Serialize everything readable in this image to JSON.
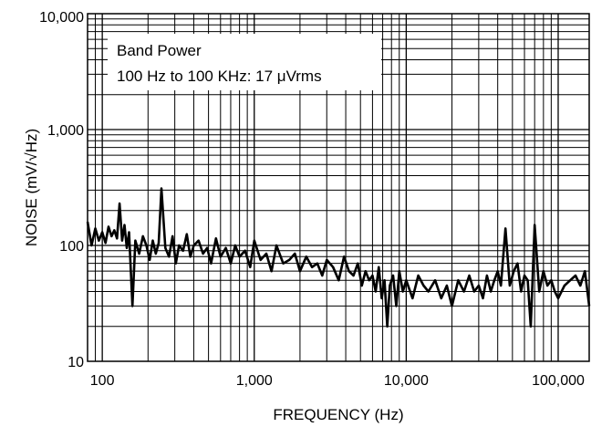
{
  "chart_data": {
    "type": "line",
    "title": "",
    "xlabel": "FREQUENCY (Hz)",
    "ylabel": "NOISE (mV/√Hz)",
    "x_scale": "log",
    "y_scale": "log",
    "xlim": [
      80,
      160000
    ],
    "ylim": [
      10,
      10000
    ],
    "grid": true,
    "x_ticks": [
      {
        "value": 100,
        "label": "100"
      },
      {
        "value": 1000,
        "label": "1,000"
      },
      {
        "value": 10000,
        "label": "10,000"
      },
      {
        "value": 100000,
        "label": "100,000"
      }
    ],
    "y_ticks": [
      {
        "value": 10,
        "label": "10"
      },
      {
        "value": 100,
        "label": "100"
      },
      {
        "value": 1000,
        "label": "1,000"
      },
      {
        "value": 10000,
        "label": "10,000"
      }
    ],
    "annotation": {
      "line1": "Band Power",
      "line2": "100 Hz to 100 KHz: 17 μVrms"
    },
    "series": [
      {
        "color": "#000000",
        "x": [
          80,
          85,
          90,
          95,
          100,
          105,
          110,
          115,
          120,
          125,
          130,
          135,
          140,
          145,
          150,
          158,
          165,
          175,
          185,
          195,
          205,
          215,
          225,
          235,
          245,
          260,
          275,
          290,
          305,
          320,
          340,
          360,
          380,
          400,
          430,
          460,
          490,
          520,
          560,
          600,
          650,
          700,
          750,
          800,
          870,
          940,
          1000,
          1100,
          1200,
          1300,
          1400,
          1550,
          1700,
          1850,
          2000,
          2200,
          2400,
          2600,
          2800,
          3000,
          3300,
          3600,
          3900,
          4200,
          4500,
          4800,
          5100,
          5400,
          5700,
          6000,
          6300,
          6600,
          6900,
          7200,
          7500,
          7800,
          8200,
          8600,
          9000,
          9500,
          10000,
          11000,
          12000,
          13000,
          14000,
          15500,
          17000,
          18500,
          20000,
          22000,
          24000,
          26000,
          28000,
          30000,
          32000,
          34000,
          36000,
          38000,
          40000,
          42000,
          45000,
          48000,
          51000,
          54000,
          57000,
          60000,
          63000,
          66000,
          70000,
          75000,
          80000,
          85000,
          90000,
          95000,
          100000,
          110000,
          120000,
          130000,
          140000,
          150000,
          160000
        ],
        "y": [
          160,
          100,
          140,
          110,
          130,
          105,
          145,
          120,
          135,
          115,
          230,
          110,
          150,
          95,
          130,
          30,
          110,
          85,
          120,
          100,
          75,
          110,
          85,
          105,
          310,
          95,
          80,
          120,
          70,
          100,
          90,
          125,
          80,
          100,
          110,
          85,
          95,
          70,
          115,
          80,
          95,
          70,
          100,
          80,
          90,
          65,
          110,
          75,
          85,
          60,
          100,
          70,
          75,
          85,
          60,
          80,
          65,
          70,
          55,
          75,
          65,
          50,
          80,
          60,
          55,
          70,
          45,
          60,
          50,
          55,
          40,
          65,
          35,
          50,
          20,
          45,
          55,
          30,
          60,
          40,
          50,
          35,
          55,
          45,
          40,
          50,
          35,
          45,
          30,
          50,
          40,
          55,
          40,
          45,
          35,
          55,
          40,
          50,
          60,
          45,
          140,
          45,
          60,
          70,
          40,
          55,
          50,
          20,
          150,
          40,
          60,
          45,
          50,
          40,
          35,
          45,
          50,
          55,
          45,
          60,
          30
        ]
      }
    ]
  }
}
